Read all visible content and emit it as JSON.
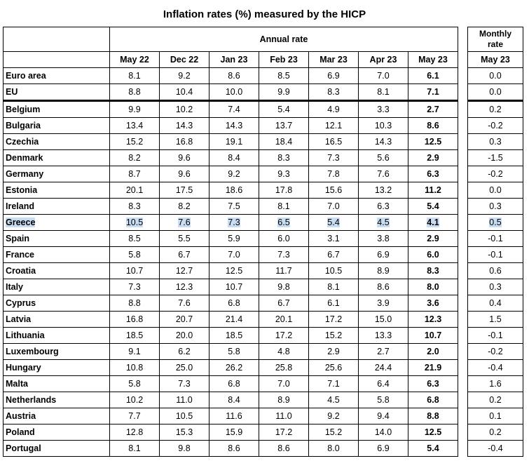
{
  "title": "Inflation rates (%) measured by the HICP",
  "annual_header": "Annual rate",
  "monthly_header_line1": "Monthly",
  "monthly_header_line2": "rate",
  "columns": [
    "May 22",
    "Dec 22",
    "Jan 23",
    "Feb 23",
    "Mar 23",
    "Apr 23",
    "May 23"
  ],
  "monthly_column": "May 23",
  "highlighted_row": "Greece",
  "highlight_color": "#c9ddf2",
  "rows": [
    {
      "country": "Euro area",
      "values": [
        "8.1",
        "9.2",
        "8.6",
        "8.5",
        "6.9",
        "7.0",
        "6.1"
      ],
      "monthly": "0.0"
    },
    {
      "country": "EU",
      "values": [
        "8.8",
        "10.4",
        "10.0",
        "9.9",
        "8.3",
        "8.1",
        "7.1"
      ],
      "monthly": "0.0"
    },
    {
      "country": "Belgium",
      "values": [
        "9.9",
        "10.2",
        "7.4",
        "5.4",
        "4.9",
        "3.3",
        "2.7"
      ],
      "monthly": "0.2"
    },
    {
      "country": "Bulgaria",
      "values": [
        "13.4",
        "14.3",
        "14.3",
        "13.7",
        "12.1",
        "10.3",
        "8.6"
      ],
      "monthly": "-0.2"
    },
    {
      "country": "Czechia",
      "values": [
        "15.2",
        "16.8",
        "19.1",
        "18.4",
        "16.5",
        "14.3",
        "12.5"
      ],
      "monthly": "0.3"
    },
    {
      "country": "Denmark",
      "values": [
        "8.2",
        "9.6",
        "8.4",
        "8.3",
        "7.3",
        "5.6",
        "2.9"
      ],
      "monthly": "-1.5"
    },
    {
      "country": "Germany",
      "values": [
        "8.7",
        "9.6",
        "9.2",
        "9.3",
        "7.8",
        "7.6",
        "6.3"
      ],
      "monthly": "-0.2"
    },
    {
      "country": "Estonia",
      "values": [
        "20.1",
        "17.5",
        "18.6",
        "17.8",
        "15.6",
        "13.2",
        "11.2"
      ],
      "monthly": "0.0"
    },
    {
      "country": "Ireland",
      "values": [
        "8.3",
        "8.2",
        "7.5",
        "8.1",
        "7.0",
        "6.3",
        "5.4"
      ],
      "monthly": "0.3"
    },
    {
      "country": "Greece",
      "values": [
        "10.5",
        "7.6",
        "7.3",
        "6.5",
        "5.4",
        "4.5",
        "4.1"
      ],
      "monthly": "0.5"
    },
    {
      "country": "Spain",
      "values": [
        "8.5",
        "5.5",
        "5.9",
        "6.0",
        "3.1",
        "3.8",
        "2.9"
      ],
      "monthly": "-0.1"
    },
    {
      "country": "France",
      "values": [
        "5.8",
        "6.7",
        "7.0",
        "7.3",
        "6.7",
        "6.9",
        "6.0"
      ],
      "monthly": "-0.1"
    },
    {
      "country": "Croatia",
      "values": [
        "10.7",
        "12.7",
        "12.5",
        "11.7",
        "10.5",
        "8.9",
        "8.3"
      ],
      "monthly": "0.6"
    },
    {
      "country": "Italy",
      "values": [
        "7.3",
        "12.3",
        "10.7",
        "9.8",
        "8.1",
        "8.6",
        "8.0"
      ],
      "monthly": "0.3"
    },
    {
      "country": "Cyprus",
      "values": [
        "8.8",
        "7.6",
        "6.8",
        "6.7",
        "6.1",
        "3.9",
        "3.6"
      ],
      "monthly": "0.4"
    },
    {
      "country": "Latvia",
      "values": [
        "16.8",
        "20.7",
        "21.4",
        "20.1",
        "17.2",
        "15.0",
        "12.3"
      ],
      "monthly": "1.5"
    },
    {
      "country": "Lithuania",
      "values": [
        "18.5",
        "20.0",
        "18.5",
        "17.2",
        "15.2",
        "13.3",
        "10.7"
      ],
      "monthly": "-0.1"
    },
    {
      "country": "Luxembourg",
      "values": [
        "9.1",
        "6.2",
        "5.8",
        "4.8",
        "2.9",
        "2.7",
        "2.0"
      ],
      "monthly": "-0.2"
    },
    {
      "country": "Hungary",
      "values": [
        "10.8",
        "25.0",
        "26.2",
        "25.8",
        "25.6",
        "24.4",
        "21.9"
      ],
      "monthly": "-0.4"
    },
    {
      "country": "Malta",
      "values": [
        "5.8",
        "7.3",
        "6.8",
        "7.0",
        "7.1",
        "6.4",
        "6.3"
      ],
      "monthly": "1.6"
    },
    {
      "country": "Netherlands",
      "values": [
        "10.2",
        "11.0",
        "8.4",
        "8.9",
        "4.5",
        "5.8",
        "6.8"
      ],
      "monthly": "0.2"
    },
    {
      "country": "Austria",
      "values": [
        "7.7",
        "10.5",
        "11.6",
        "11.0",
        "9.2",
        "9.4",
        "8.8"
      ],
      "monthly": "0.1"
    },
    {
      "country": "Poland",
      "values": [
        "12.8",
        "15.3",
        "15.9",
        "17.2",
        "15.2",
        "14.0",
        "12.5"
      ],
      "monthly": "0.2"
    },
    {
      "country": "Portugal",
      "values": [
        "8.1",
        "9.8",
        "8.6",
        "8.6",
        "8.0",
        "6.9",
        "5.4"
      ],
      "monthly": "-0.4"
    }
  ]
}
